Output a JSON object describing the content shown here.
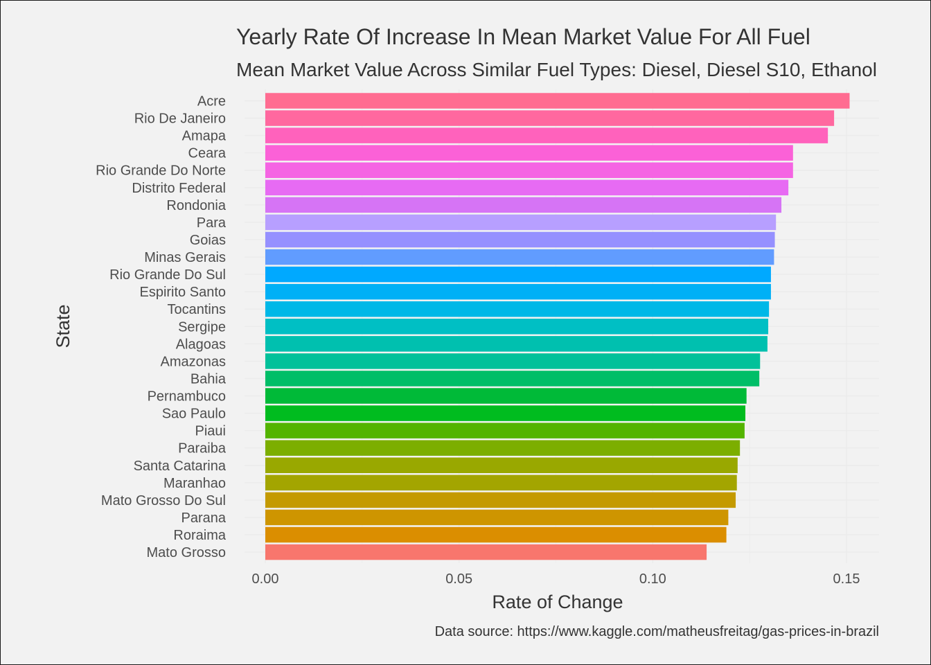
{
  "chart_data": {
    "type": "bar",
    "orientation": "horizontal",
    "title": "Yearly Rate Of Increase In Mean Market Value For All Fuel",
    "subtitle": "Mean Market Value Across Similar Fuel Types: Diesel, Diesel S10, Ethanol",
    "xlabel": "Rate of Change",
    "ylabel": "State",
    "caption": "Data source: https://www.kaggle.com/matheusfreitag/gas-prices-in-brazil",
    "xlim": [
      0,
      0.158
    ],
    "xticks": [
      0.0,
      0.05,
      0.1,
      0.15
    ],
    "xtick_labels": [
      "0.00",
      "0.05",
      "0.10",
      "0.15"
    ],
    "grid": true,
    "legend": "none",
    "categories": [
      "Acre",
      "Rio De Janeiro",
      "Amapa",
      "Ceara",
      "Rio Grande Do Norte",
      "Distrito Federal",
      "Rondonia",
      "Para",
      "Goias",
      "Minas Gerais",
      "Rio Grande Do Sul",
      "Espirito Santo",
      "Tocantins",
      "Sergipe",
      "Alagoas",
      "Amazonas",
      "Bahia",
      "Pernambuco",
      "Sao Paulo",
      "Piaui",
      "Paraiba",
      "Santa Catarina",
      "Maranhao",
      "Mato Grosso Do Sul",
      "Parana",
      "Roraima",
      "Mato Grosso"
    ],
    "values": [
      0.1508,
      0.1468,
      0.1452,
      0.1362,
      0.1362,
      0.135,
      0.1332,
      0.1318,
      0.1315,
      0.1313,
      0.1305,
      0.1305,
      0.13,
      0.1298,
      0.1296,
      0.1277,
      0.1275,
      0.1242,
      0.1239,
      0.1237,
      0.1225,
      0.1219,
      0.1217,
      0.1214,
      0.1195,
      0.119,
      0.1139
    ],
    "colors": [
      "#FF6C91",
      "#FF689F",
      "#FF62BC",
      "#FB61D7",
      "#F564E3",
      "#E76BF3",
      "#D674F5",
      "#B79FFF",
      "#9590FF",
      "#619CFF",
      "#00A9FF",
      "#00B0F6",
      "#00B8E7",
      "#00BFC4",
      "#00C0AF",
      "#00C19A",
      "#00BE67",
      "#00BA38",
      "#00BC1F",
      "#53B400",
      "#7CAE00",
      "#99A800",
      "#A3A500",
      "#C49A00",
      "#CE9500",
      "#DB8E00",
      "#F8766D"
    ]
  }
}
